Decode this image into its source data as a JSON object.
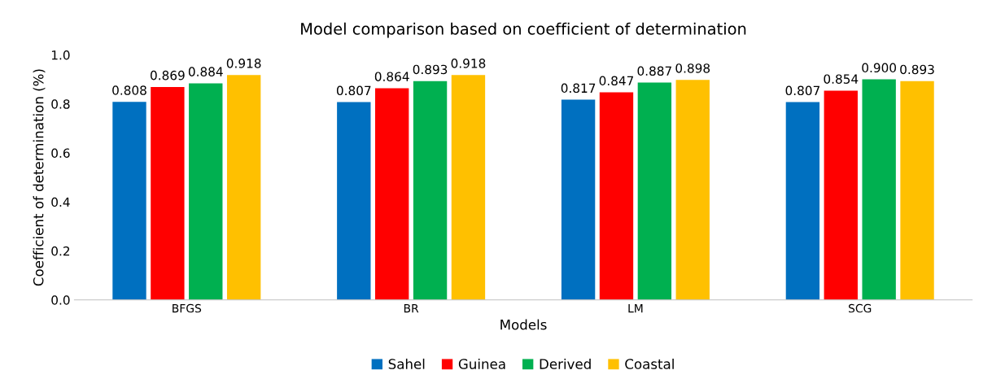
{
  "chart_data": {
    "type": "bar",
    "title": "Model comparison based on coefficient of determination",
    "xlabel": "Models",
    "ylabel": "Coefficient of determination (%)",
    "categories": [
      "BFGS",
      "BR",
      "LM",
      "SCG"
    ],
    "series": [
      {
        "name": "Sahel",
        "color": "#0070c0",
        "values": [
          0.808,
          0.807,
          0.817,
          0.807
        ],
        "value_labels": [
          "0.808",
          "0.807",
          "0.817",
          "0.807"
        ]
      },
      {
        "name": "Guinea",
        "color": "#ff0000",
        "values": [
          0.869,
          0.864,
          0.847,
          0.854
        ],
        "value_labels": [
          "0.869",
          "0.864",
          "0.847",
          "0.854"
        ]
      },
      {
        "name": "Derived",
        "color": "#00b050",
        "values": [
          0.884,
          0.893,
          0.887,
          0.9
        ],
        "value_labels": [
          "0.884",
          "0.893",
          "0.887",
          "0.900"
        ]
      },
      {
        "name": "Coastal",
        "color": "#ffc000",
        "values": [
          0.918,
          0.918,
          0.898,
          0.893
        ],
        "value_labels": [
          "0.918",
          "0.918",
          "0.898",
          "0.893"
        ]
      }
    ],
    "ylim": [
      0,
      1
    ],
    "yticks": [
      {
        "value": 0,
        "label": "0.0"
      },
      {
        "value": 0.2,
        "label": "0.2"
      },
      {
        "value": 0.4,
        "label": "0.4"
      },
      {
        "value": 0.6,
        "label": "0.6"
      },
      {
        "value": 0.8,
        "label": "0.8"
      },
      {
        "value": 1,
        "label": "1.0"
      }
    ],
    "grid": false,
    "legend": "bottom"
  }
}
